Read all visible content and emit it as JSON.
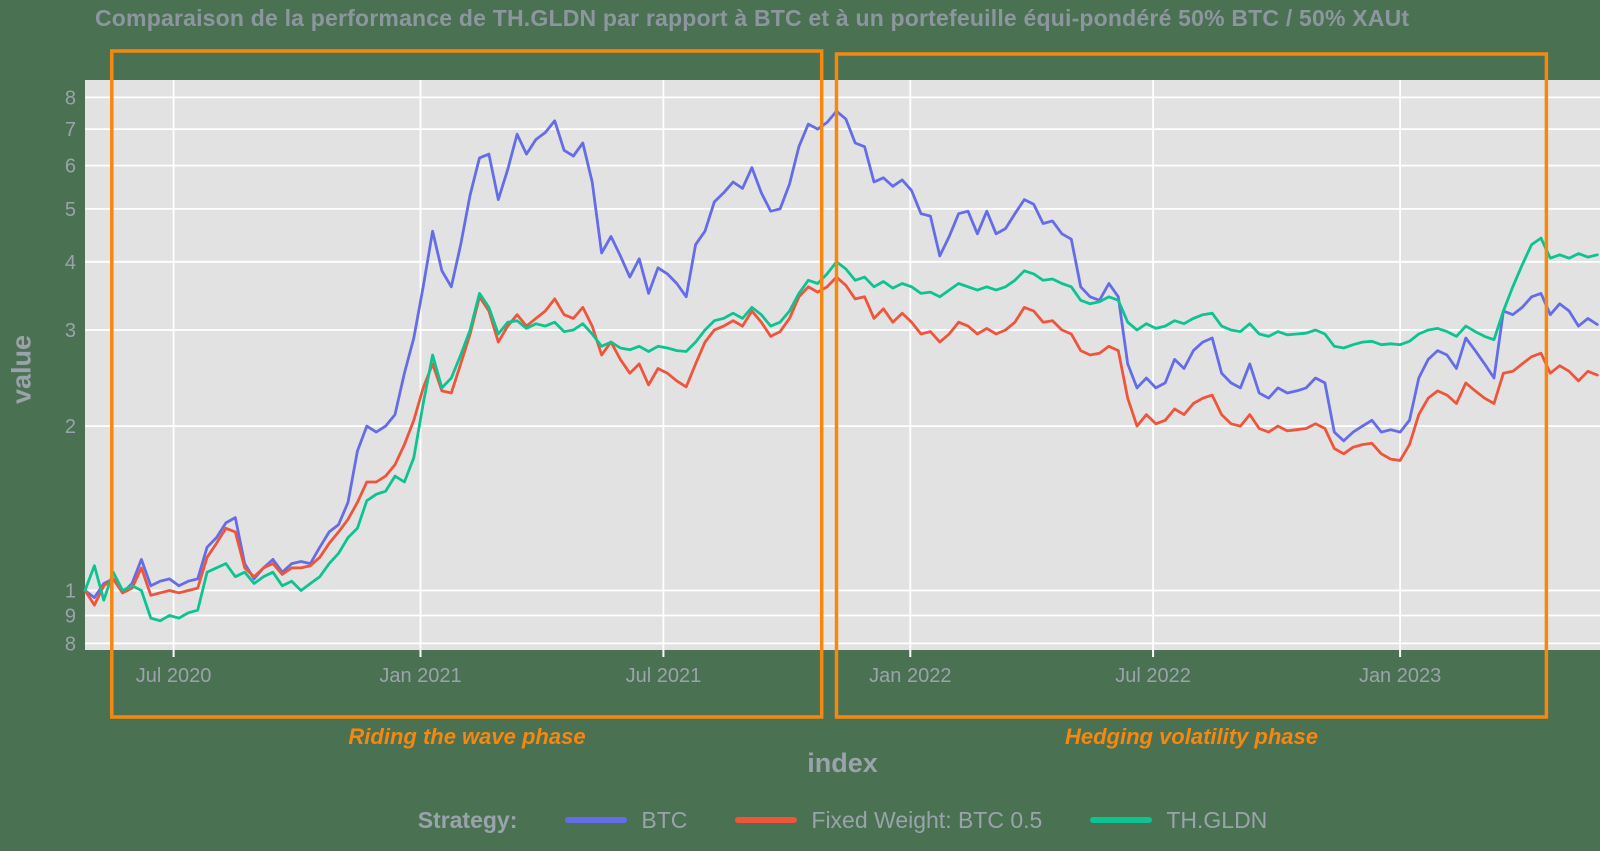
{
  "title": "Comparaison de la performance de TH.GLDN par rapport à BTC et à un portefeuille équi-pondéré 50% BTC / 50% XAUt",
  "colors": {
    "background": "#4B7153",
    "panel": "#E2E2E2",
    "grid": "#FFFFFF",
    "tick_text": "#9AA3AB",
    "title_text": "#8D969E",
    "annotation_orange": "#F6870F",
    "btc_blue": "#656CE8",
    "fixed_weight_red": "#EF553B",
    "thgldn_green": "#0DC392"
  },
  "legend": {
    "title": "Strategy:",
    "position": "bottom-center"
  },
  "chart_data": {
    "type": "line",
    "title": "Comparaison de la performance de TH.GLDN par rapport à BTC et à un portefeuille équi-pondéré 50% BTC / 50% XAUt",
    "xlabel": "index",
    "ylabel": "value",
    "grid": true,
    "x_axis": {
      "type": "date",
      "unit": "days since 2020-05-01",
      "range": [
        -5,
        1124
      ],
      "ticks": [
        {
          "label": "Jul 2020",
          "t": 61
        },
        {
          "label": "Jan 2021",
          "t": 245
        },
        {
          "label": "Jul 2021",
          "t": 426
        },
        {
          "label": "Jan 2022",
          "t": 610
        },
        {
          "label": "Jul 2022",
          "t": 791
        },
        {
          "label": "Jan 2023",
          "t": 975
        }
      ]
    },
    "y_axis": {
      "type": "log",
      "range": [
        0.778,
        8.61
      ],
      "ticks": [
        {
          "label": "8",
          "v": 8
        },
        {
          "label": "7",
          "v": 7
        },
        {
          "label": "6",
          "v": 6
        },
        {
          "label": "5",
          "v": 5
        },
        {
          "label": "4",
          "v": 4
        },
        {
          "label": "3",
          "v": 3
        },
        {
          "label": "2",
          "v": 2
        },
        {
          "label": "1",
          "v": 1
        },
        {
          "label": "9",
          "v": 0.9
        },
        {
          "label": "8",
          "v": 0.8
        }
      ]
    },
    "x_start_days": -5,
    "x_step_days": 7,
    "series": [
      {
        "name": "BTC",
        "color": "#656CE8",
        "values": [
          1.0,
          0.97,
          1.03,
          1.05,
          0.99,
          1.03,
          1.14,
          1.02,
          1.04,
          1.05,
          1.02,
          1.04,
          1.05,
          1.2,
          1.25,
          1.33,
          1.36,
          1.12,
          1.05,
          1.1,
          1.14,
          1.08,
          1.12,
          1.13,
          1.12,
          1.2,
          1.28,
          1.32,
          1.45,
          1.8,
          2.0,
          1.95,
          2.0,
          2.1,
          2.5,
          2.9,
          3.6,
          4.55,
          3.85,
          3.6,
          4.3,
          5.3,
          6.2,
          6.3,
          5.2,
          5.9,
          6.85,
          6.3,
          6.7,
          6.9,
          7.25,
          6.4,
          6.25,
          6.6,
          5.6,
          4.15,
          4.45,
          4.1,
          3.75,
          4.05,
          3.5,
          3.9,
          3.8,
          3.65,
          3.45,
          4.3,
          4.55,
          5.15,
          5.35,
          5.6,
          5.45,
          5.95,
          5.35,
          4.95,
          5.0,
          5.55,
          6.5,
          7.15,
          7.0,
          7.2,
          7.55,
          7.3,
          6.6,
          6.5,
          5.6,
          5.7,
          5.5,
          5.65,
          5.4,
          4.9,
          4.85,
          4.1,
          4.45,
          4.9,
          4.95,
          4.5,
          4.95,
          4.5,
          4.6,
          4.9,
          5.2,
          5.1,
          4.7,
          4.75,
          4.5,
          4.4,
          3.6,
          3.45,
          3.4,
          3.65,
          3.45,
          2.6,
          2.35,
          2.45,
          2.35,
          2.4,
          2.65,
          2.55,
          2.75,
          2.85,
          2.9,
          2.5,
          2.4,
          2.35,
          2.6,
          2.3,
          2.25,
          2.35,
          2.3,
          2.32,
          2.35,
          2.45,
          2.4,
          1.95,
          1.88,
          1.95,
          2.0,
          2.05,
          1.95,
          1.97,
          1.95,
          2.05,
          2.45,
          2.65,
          2.75,
          2.7,
          2.55,
          2.9,
          2.75,
          2.6,
          2.45,
          3.25,
          3.2,
          3.3,
          3.45,
          3.5,
          3.2,
          3.35,
          3.25,
          3.05,
          3.15,
          3.07
        ]
      },
      {
        "name": "Fixed Weight: BTC 0.5",
        "color": "#EF553B",
        "values": [
          1.0,
          0.94,
          1.02,
          1.05,
          0.99,
          1.01,
          1.1,
          0.98,
          0.99,
          1.0,
          0.99,
          1.0,
          1.01,
          1.15,
          1.22,
          1.3,
          1.28,
          1.1,
          1.06,
          1.1,
          1.12,
          1.07,
          1.1,
          1.1,
          1.11,
          1.15,
          1.22,
          1.28,
          1.35,
          1.45,
          1.58,
          1.58,
          1.62,
          1.7,
          1.85,
          2.05,
          2.35,
          2.6,
          2.32,
          2.3,
          2.6,
          2.95,
          3.45,
          3.25,
          2.85,
          3.05,
          3.2,
          3.05,
          3.15,
          3.25,
          3.42,
          3.2,
          3.15,
          3.3,
          3.05,
          2.7,
          2.85,
          2.65,
          2.5,
          2.6,
          2.38,
          2.55,
          2.5,
          2.42,
          2.36,
          2.6,
          2.85,
          3.0,
          3.05,
          3.12,
          3.05,
          3.25,
          3.1,
          2.92,
          2.98,
          3.15,
          3.45,
          3.6,
          3.52,
          3.6,
          3.75,
          3.62,
          3.42,
          3.45,
          3.15,
          3.28,
          3.1,
          3.22,
          3.1,
          2.95,
          2.98,
          2.85,
          2.95,
          3.1,
          3.05,
          2.95,
          3.02,
          2.95,
          3.0,
          3.1,
          3.3,
          3.25,
          3.1,
          3.12,
          3.0,
          2.95,
          2.75,
          2.7,
          2.72,
          2.8,
          2.75,
          2.25,
          2.0,
          2.1,
          2.02,
          2.05,
          2.15,
          2.1,
          2.2,
          2.25,
          2.28,
          2.1,
          2.02,
          2.0,
          2.1,
          1.98,
          1.95,
          2.0,
          1.96,
          1.97,
          1.98,
          2.02,
          1.98,
          1.82,
          1.78,
          1.83,
          1.85,
          1.86,
          1.78,
          1.74,
          1.73,
          1.85,
          2.1,
          2.25,
          2.32,
          2.28,
          2.2,
          2.4,
          2.32,
          2.25,
          2.2,
          2.5,
          2.52,
          2.6,
          2.68,
          2.72,
          2.5,
          2.58,
          2.52,
          2.42,
          2.52,
          2.48
        ]
      },
      {
        "name": "TH.GLDN",
        "color": "#0DC392",
        "values": [
          1.0,
          1.11,
          0.96,
          1.08,
          1.0,
          1.02,
          1.0,
          0.89,
          0.88,
          0.9,
          0.89,
          0.91,
          0.92,
          1.08,
          1.1,
          1.12,
          1.06,
          1.08,
          1.03,
          1.06,
          1.08,
          1.02,
          1.04,
          1.0,
          1.03,
          1.06,
          1.12,
          1.17,
          1.25,
          1.3,
          1.46,
          1.5,
          1.52,
          1.62,
          1.58,
          1.75,
          2.2,
          2.7,
          2.35,
          2.45,
          2.7,
          3.0,
          3.5,
          3.3,
          2.95,
          3.1,
          3.12,
          3.02,
          3.08,
          3.05,
          3.1,
          2.98,
          3.0,
          3.08,
          2.95,
          2.8,
          2.85,
          2.78,
          2.76,
          2.8,
          2.74,
          2.8,
          2.78,
          2.75,
          2.74,
          2.85,
          3.0,
          3.12,
          3.15,
          3.22,
          3.15,
          3.3,
          3.2,
          3.05,
          3.1,
          3.25,
          3.5,
          3.7,
          3.65,
          3.8,
          4.0,
          3.88,
          3.7,
          3.75,
          3.6,
          3.68,
          3.58,
          3.65,
          3.6,
          3.5,
          3.52,
          3.45,
          3.55,
          3.65,
          3.6,
          3.55,
          3.6,
          3.55,
          3.6,
          3.7,
          3.85,
          3.8,
          3.7,
          3.72,
          3.65,
          3.6,
          3.4,
          3.35,
          3.38,
          3.45,
          3.4,
          3.1,
          3.0,
          3.08,
          3.02,
          3.05,
          3.12,
          3.08,
          3.15,
          3.2,
          3.22,
          3.05,
          3.0,
          2.98,
          3.08,
          2.95,
          2.92,
          2.98,
          2.94,
          2.95,
          2.96,
          3.0,
          2.95,
          2.8,
          2.78,
          2.82,
          2.85,
          2.86,
          2.82,
          2.83,
          2.82,
          2.86,
          2.95,
          3.0,
          3.02,
          2.98,
          2.92,
          3.05,
          2.98,
          2.92,
          2.88,
          3.25,
          3.6,
          3.95,
          4.3,
          4.42,
          4.06,
          4.12,
          4.06,
          4.14,
          4.08,
          4.12
        ]
      }
    ],
    "annotations": {
      "color": "#F6870F",
      "phases": [
        {
          "label": "Riding the wave phase",
          "t_start": 15,
          "t_end": 544
        },
        {
          "label": "Hedging volatility phase",
          "t_start": 555,
          "t_end": 1084
        }
      ]
    }
  }
}
